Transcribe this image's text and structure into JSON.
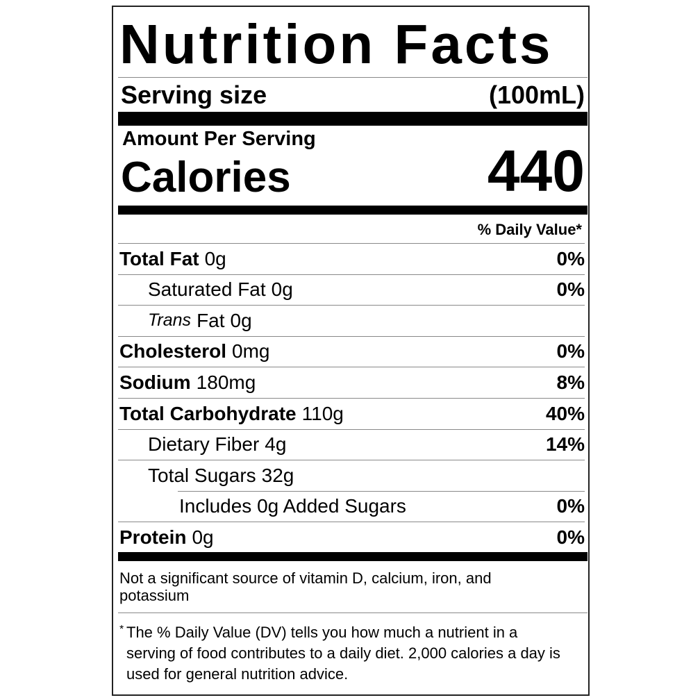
{
  "title": "Nutrition Facts",
  "serving": {
    "label": "Serving size",
    "value": "(100mL)"
  },
  "calories": {
    "header": "Amount Per Serving",
    "label": "Calories",
    "value": "440"
  },
  "daily_value_header": "% Daily Value*",
  "nutrients": [
    {
      "name": "Total Fat",
      "amount": "0g",
      "dv": "0%",
      "sub": [
        {
          "name": "Saturated Fat",
          "amount": "0g",
          "dv": "0%"
        },
        {
          "prefix": "Trans",
          "name": "Fat",
          "amount": "0g"
        }
      ]
    },
    {
      "name": "Cholesterol",
      "amount": "0mg",
      "dv": "0%"
    },
    {
      "name": "Sodium",
      "amount": "180mg",
      "dv": "8%"
    },
    {
      "name": "Total Carbohydrate",
      "amount": "110g",
      "dv": "40%",
      "sub": [
        {
          "name": "Dietary Fiber",
          "amount": "4g",
          "dv": "14%"
        },
        {
          "name": "Total Sugars",
          "amount": "32g",
          "sub": [
            {
              "name": "Includes 0g Added Sugars",
              "dv": "0%"
            }
          ]
        }
      ]
    },
    {
      "name": "Protein",
      "amount": "0g",
      "dv": "0%"
    }
  ],
  "note": "Not a significant source of vitamin D, calcium, iron, and potassium",
  "footnote": {
    "marker": "*",
    "text": "The % Daily Value (DV) tells you how much a nutrient in a serving of food contributes to a daily diet. 2,000 calories a day is used for general nutrition advice."
  }
}
